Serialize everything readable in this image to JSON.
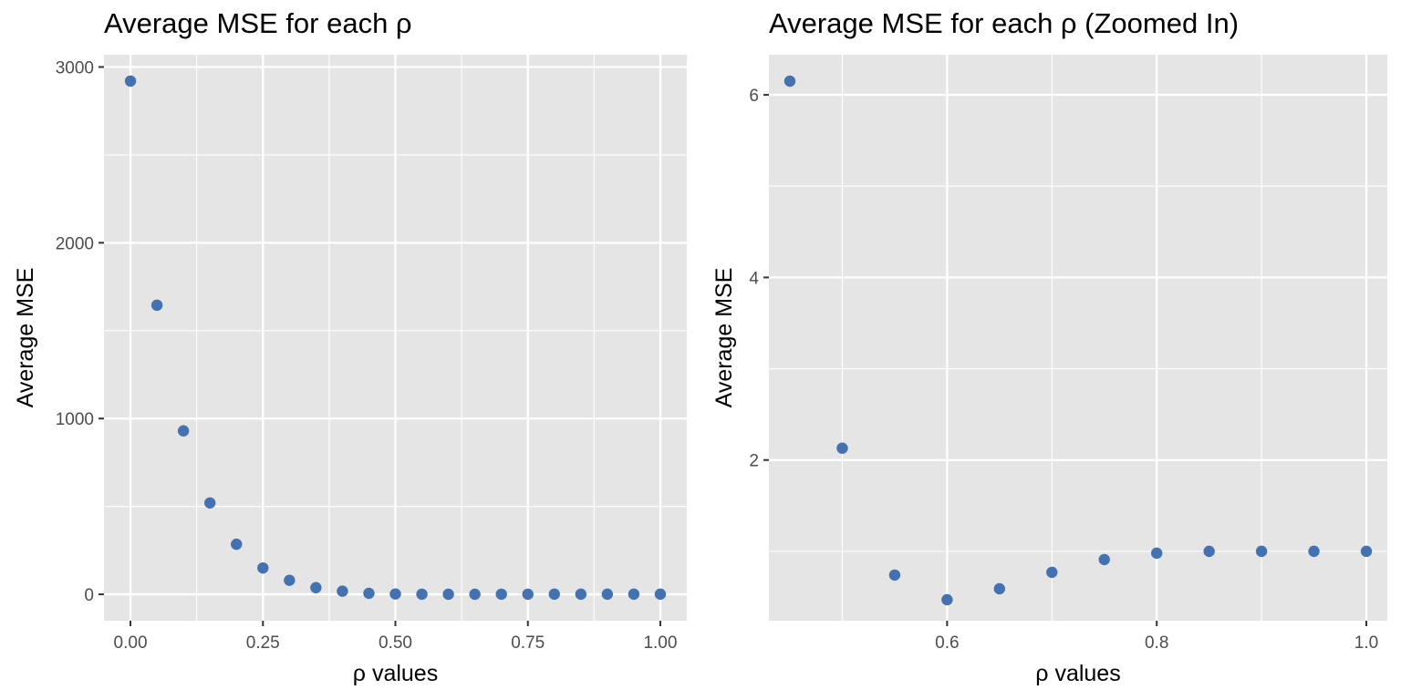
{
  "chart_data": [
    {
      "type": "scatter",
      "title": "Average MSE for each ρ",
      "xlabel": "ρ values",
      "ylabel": "Average MSE",
      "xlim": [
        -0.05,
        1.05
      ],
      "ylim": [
        -150,
        3070
      ],
      "xticks": [
        0.0,
        0.25,
        0.5,
        0.75,
        1.0
      ],
      "xtick_labels": [
        "0.00",
        "0.25",
        "0.50",
        "0.75",
        "1.00"
      ],
      "yticks": [
        0,
        1000,
        2000,
        3000
      ],
      "ytick_labels": [
        "0",
        "1000",
        "2000",
        "3000"
      ],
      "grid": true,
      "point_color": "#4472B0",
      "x": [
        0.0,
        0.05,
        0.1,
        0.15,
        0.2,
        0.25,
        0.3,
        0.35,
        0.4,
        0.45,
        0.5,
        0.55,
        0.6,
        0.65,
        0.7,
        0.75,
        0.8,
        0.85,
        0.9,
        0.95,
        1.0
      ],
      "y": [
        2920,
        1645,
        930,
        520,
        285,
        150,
        80,
        38,
        18,
        6.1,
        2.1,
        0.8,
        0.5,
        0.6,
        0.8,
        0.9,
        0.98,
        1.0,
        1.0,
        1.0,
        1.0
      ]
    },
    {
      "type": "scatter",
      "title": "Average MSE for each ρ (Zoomed In)",
      "xlabel": "ρ values",
      "ylabel": "Average MSE",
      "xlim": [
        0.43,
        1.02
      ],
      "ylim": [
        0.24,
        6.44
      ],
      "xticks": [
        0.6,
        0.8,
        1.0
      ],
      "xtick_labels": [
        "0.6",
        "0.8",
        "1.0"
      ],
      "yticks": [
        2,
        4,
        6
      ],
      "ytick_labels": [
        "2",
        "4",
        "6"
      ],
      "grid": true,
      "point_color": "#4472B0",
      "x": [
        0.45,
        0.5,
        0.55,
        0.6,
        0.65,
        0.7,
        0.75,
        0.8,
        0.85,
        0.9,
        0.95,
        1.0
      ],
      "y": [
        6.15,
        2.13,
        0.74,
        0.47,
        0.59,
        0.77,
        0.91,
        0.98,
        1.0,
        1.0,
        1.0,
        1.0
      ]
    }
  ]
}
